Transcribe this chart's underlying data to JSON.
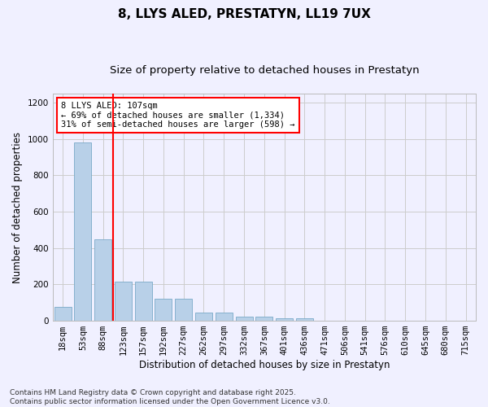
{
  "title": "8, LLYS ALED, PRESTATYN, LL19 7UX",
  "subtitle": "Size of property relative to detached houses in Prestatyn",
  "xlabel": "Distribution of detached houses by size in Prestatyn",
  "ylabel": "Number of detached properties",
  "footer_line1": "Contains HM Land Registry data © Crown copyright and database right 2025.",
  "footer_line2": "Contains public sector information licensed under the Open Government Licence v3.0.",
  "bar_labels": [
    "18sqm",
    "53sqm",
    "88sqm",
    "123sqm",
    "157sqm",
    "192sqm",
    "227sqm",
    "262sqm",
    "297sqm",
    "332sqm",
    "367sqm",
    "401sqm",
    "436sqm",
    "471sqm",
    "506sqm",
    "541sqm",
    "576sqm",
    "610sqm",
    "645sqm",
    "680sqm",
    "715sqm"
  ],
  "bar_values": [
    75,
    980,
    450,
    215,
    215,
    120,
    120,
    45,
    45,
    22,
    22,
    12,
    12,
    0,
    0,
    0,
    0,
    0,
    0,
    0,
    0
  ],
  "bar_color": "#b8d0e8",
  "bar_edge_color": "#7aaac8",
  "vline_x": 2.5,
  "vline_color": "red",
  "annotation_text": "8 LLYS ALED: 107sqm\n← 69% of detached houses are smaller (1,334)\n31% of semi-detached houses are larger (598) →",
  "annotation_box_facecolor": "white",
  "annotation_box_edgecolor": "red",
  "ylim": [
    0,
    1250
  ],
  "yticks": [
    0,
    200,
    400,
    600,
    800,
    1000,
    1200
  ],
  "grid_color": "#cccccc",
  "background_color": "#f0f0ff",
  "title_fontsize": 11,
  "subtitle_fontsize": 9.5,
  "axis_label_fontsize": 8.5,
  "tick_fontsize": 7.5,
  "annotation_fontsize": 7.5,
  "footer_fontsize": 6.5
}
